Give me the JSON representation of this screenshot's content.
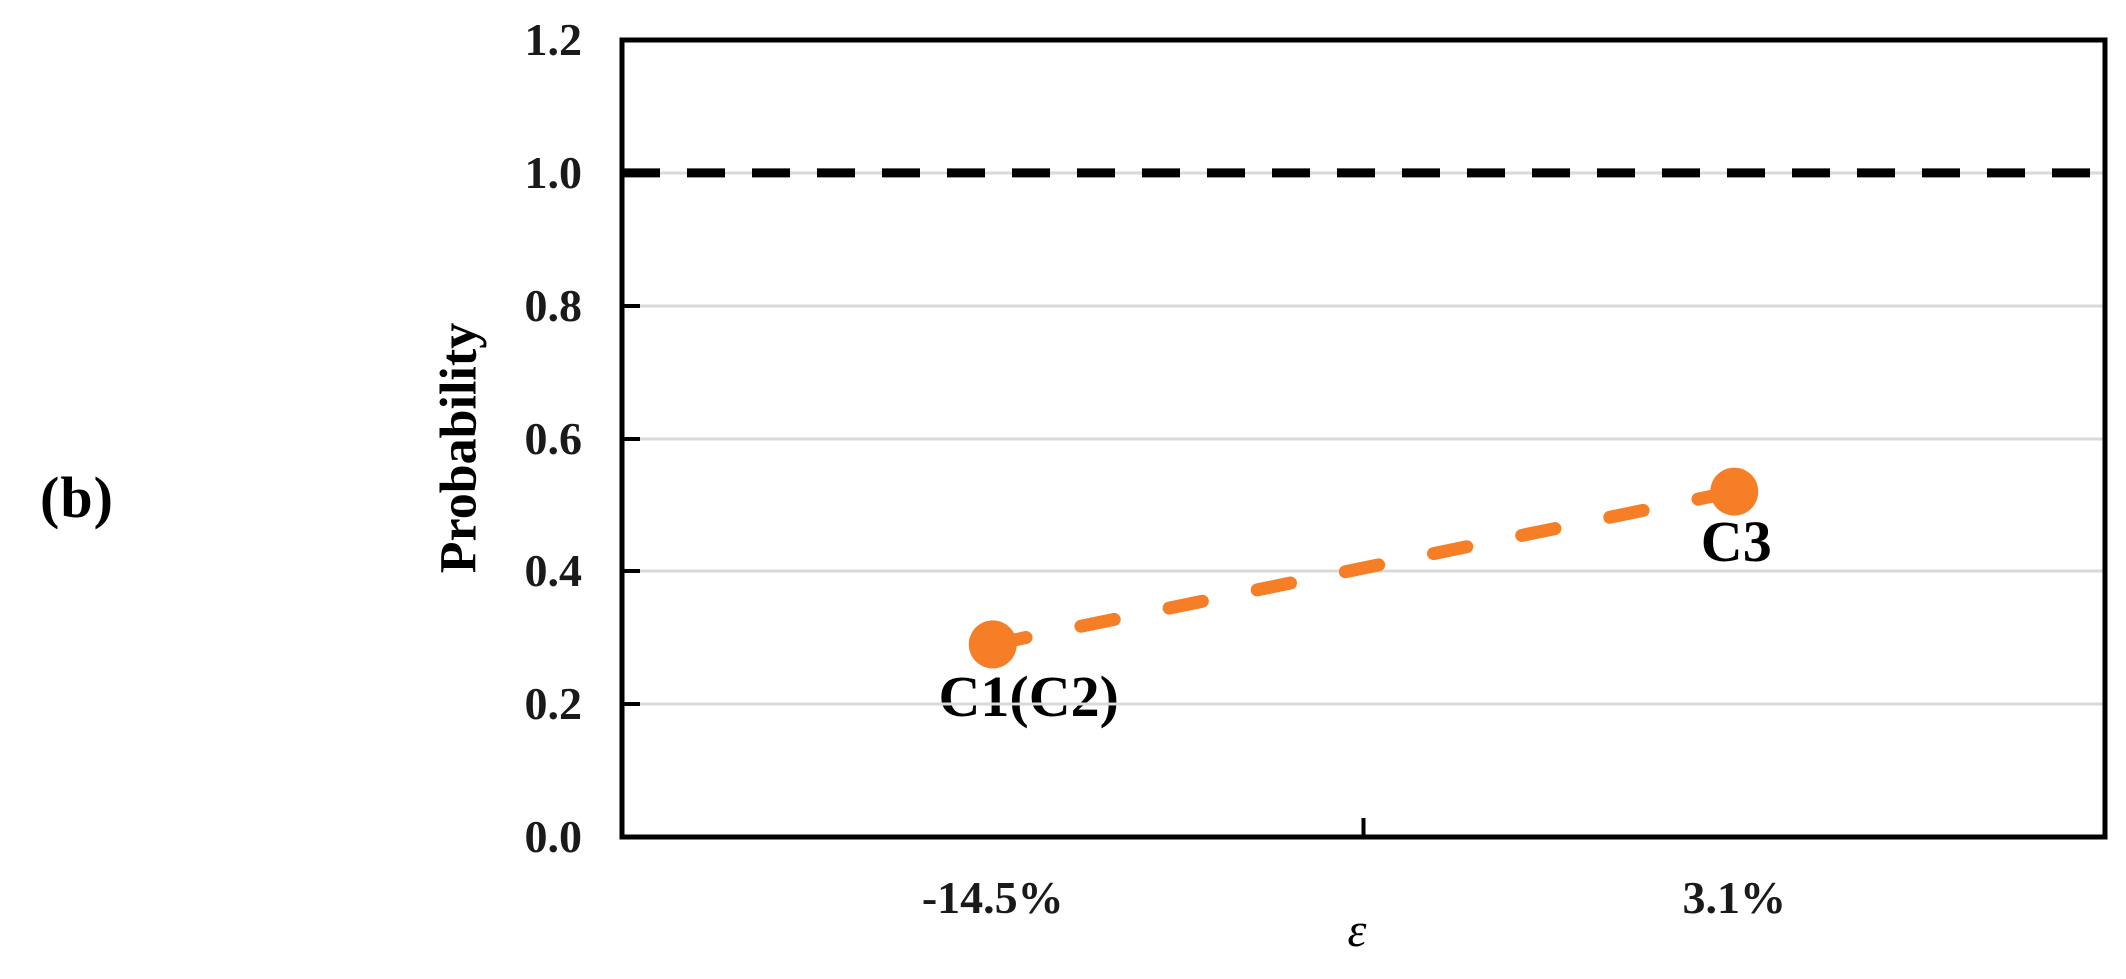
{
  "figure_label": "(b)",
  "chart_data": {
    "type": "line",
    "title": "",
    "ylabel": "Probability",
    "xlabel": "ε",
    "ylim": [
      0.0,
      1.2
    ],
    "yticks": [
      0.0,
      0.2,
      0.4,
      0.6,
      0.8,
      1.0,
      1.2
    ],
    "ytick_labels": [
      "0.0",
      "0.2",
      "0.4",
      "0.6",
      "0.8",
      "1.0",
      "1.2"
    ],
    "categories": [
      "-14.5%",
      "3.1%"
    ],
    "series": [
      {
        "name": "Probability",
        "values": [
          0.29,
          0.52
        ],
        "point_labels": [
          "C1(C2)",
          "C3"
        ],
        "color": "#F57E27",
        "line_style": "dashed",
        "marker": "circle"
      }
    ],
    "reference_line": {
      "value": 1.0,
      "color": "#000000",
      "style": "dashed"
    },
    "grid": true,
    "gridline_color": "#D9D9D9",
    "frame_color": "#000000",
    "legend_position": "none"
  }
}
